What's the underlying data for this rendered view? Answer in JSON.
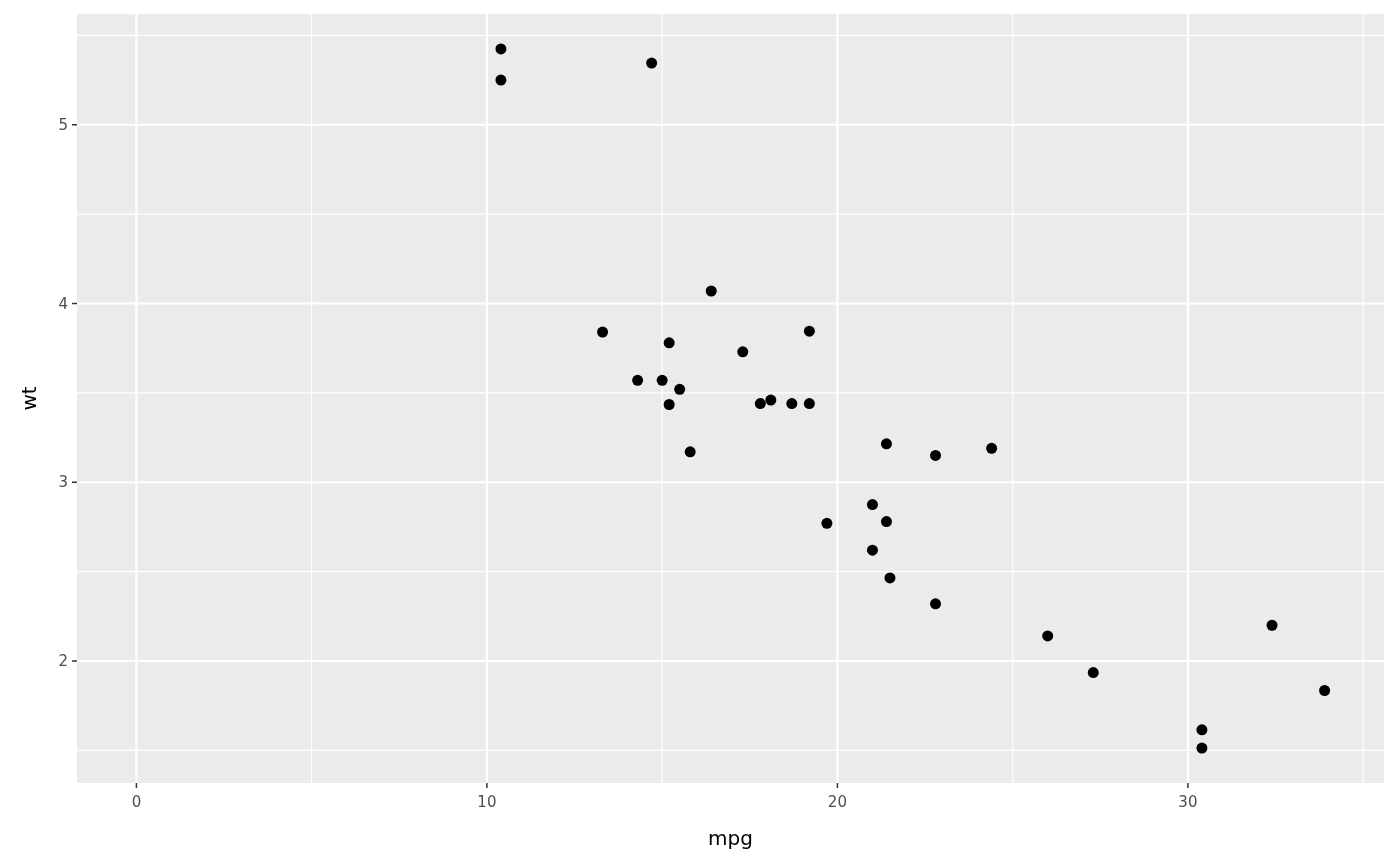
{
  "chart_data": {
    "type": "scatter",
    "xlabel": "mpg",
    "ylabel": "wt",
    "x": [
      21,
      21,
      22.8,
      21.4,
      18.7,
      18.1,
      14.3,
      24.4,
      22.8,
      19.2,
      17.8,
      16.4,
      17.3,
      15.2,
      10.4,
      10.4,
      14.7,
      32.4,
      30.4,
      33.9,
      21.5,
      15.5,
      15.2,
      13.3,
      19.2,
      27.3,
      26,
      30.4,
      15.8,
      19.7,
      15,
      21.4
    ],
    "series": [
      {
        "color": "#000000",
        "values": [
          2.62,
          2.875,
          2.32,
          3.215,
          3.44,
          3.46,
          3.57,
          3.19,
          3.15,
          3.44,
          3.44,
          4.07,
          3.73,
          3.78,
          5.25,
          5.424,
          5.345,
          2.2,
          1.615,
          1.835,
          2.465,
          3.52,
          3.435,
          3.84,
          3.845,
          1.935,
          2.14,
          1.513,
          3.17,
          2.77,
          3.57,
          2.78
        ]
      }
    ],
    "xlim": [
      -1.695,
      35.595
    ],
    "ylim": [
      1.3175,
      5.6196
    ],
    "xticks": [
      0,
      {
        "value": 5,
        "label": null
      },
      10,
      {
        "value": 15,
        "label": null
      },
      20,
      {
        "value": 25,
        "label": null
      },
      30,
      {
        "value": 35,
        "label": null
      }
    ],
    "yticks": [
      {
        "value": 1.5,
        "label": null
      },
      2,
      {
        "value": 2.5,
        "label": null
      },
      3,
      {
        "value": 3.5,
        "label": null
      },
      4,
      {
        "value": 4.5,
        "label": null
      },
      5,
      {
        "value": 5.5,
        "label": null
      }
    ],
    "grid": true,
    "marker": "circle"
  }
}
